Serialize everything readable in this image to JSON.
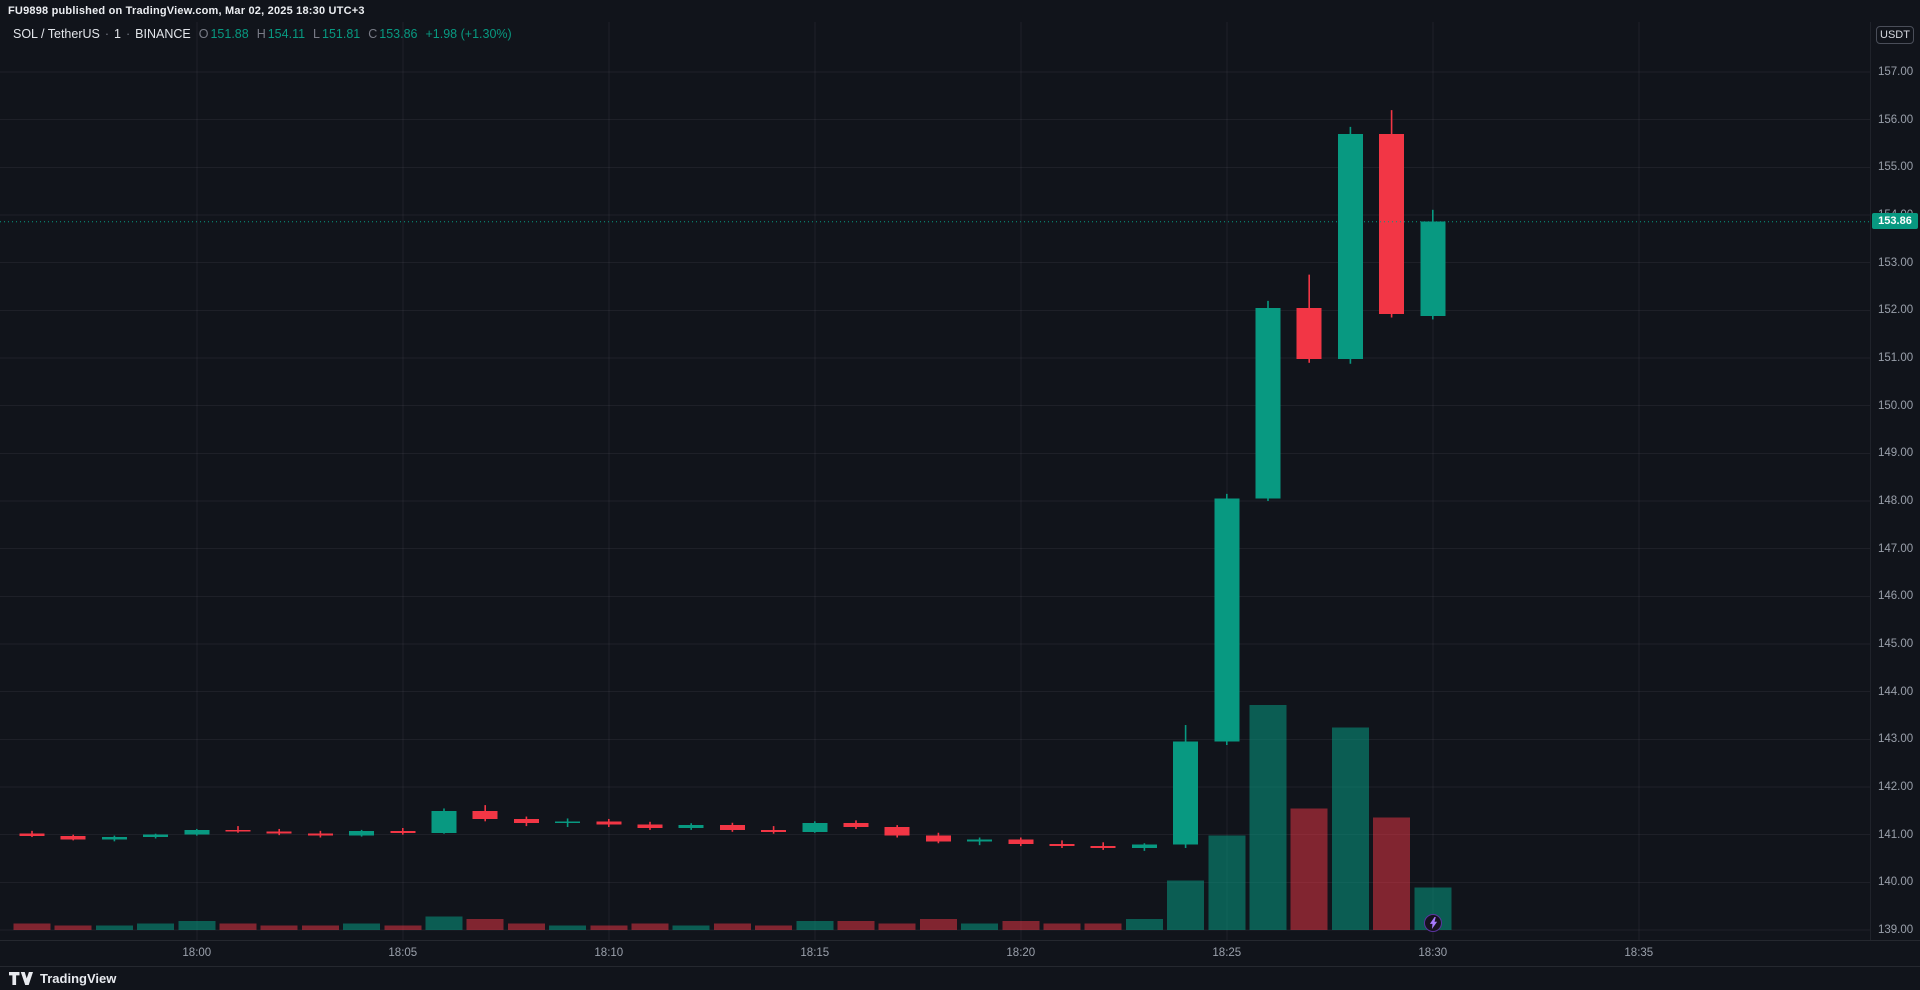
{
  "publish_bar": {
    "text": "FU9898 published on TradingView.com, Mar 02, 2025 18:30 UTC+3"
  },
  "legend": {
    "symbol": "SOL / TetherUS",
    "separator": "·",
    "interval": "1",
    "exchange": "BINANCE",
    "ohlc": {
      "o_label": "O",
      "o": "151.88",
      "h_label": "H",
      "h": "154.11",
      "l_label": "L",
      "l": "151.81",
      "c_label": "C",
      "c": "153.86",
      "change": "+1.98 (+1.30%)"
    }
  },
  "price_axis": {
    "currency": "USDT",
    "last_price": "153.86"
  },
  "footer": {
    "brand": "TradingView"
  },
  "colors": {
    "up": "#089981",
    "down": "#f23645",
    "vol_up": "rgba(8,153,129,0.55)",
    "vol_down": "rgba(242,54,69,0.5)",
    "last_price_bg": "#089981",
    "background": "#11141b"
  },
  "chart_data": {
    "type": "candlestick",
    "pair": "SOL/USDT",
    "exchange": "BINANCE",
    "interval": "1m",
    "ylim": [
      138.79,
      158.05
    ],
    "last_price": 153.86,
    "price_ticks": [
      139,
      140,
      141,
      142,
      143,
      144,
      145,
      146,
      147,
      148,
      149,
      150,
      151,
      152,
      153,
      154,
      155,
      156,
      157
    ],
    "time_ticks": [
      "18:00",
      "18:05",
      "18:10",
      "18:15",
      "18:20",
      "18:25",
      "18:30",
      "18:35"
    ],
    "volume_scale": "relative 0-1 of max bar",
    "candles": [
      {
        "t": "17:56",
        "o": 141.02,
        "h": 141.08,
        "l": 140.95,
        "c": 140.97,
        "v": 0.03
      },
      {
        "t": "17:57",
        "o": 140.97,
        "h": 141.0,
        "l": 140.88,
        "c": 140.9,
        "v": 0.02
      },
      {
        "t": "17:58",
        "o": 140.9,
        "h": 140.98,
        "l": 140.86,
        "c": 140.95,
        "v": 0.02
      },
      {
        "t": "17:59",
        "o": 140.95,
        "h": 141.02,
        "l": 140.92,
        "c": 141.0,
        "v": 0.03
      },
      {
        "t": "18:00",
        "o": 141.0,
        "h": 141.12,
        "l": 140.98,
        "c": 141.1,
        "v": 0.04
      },
      {
        "t": "18:01",
        "o": 141.1,
        "h": 141.18,
        "l": 141.04,
        "c": 141.07,
        "v": 0.03
      },
      {
        "t": "18:02",
        "o": 141.07,
        "h": 141.12,
        "l": 140.99,
        "c": 141.02,
        "v": 0.02
      },
      {
        "t": "18:03",
        "o": 141.02,
        "h": 141.08,
        "l": 140.94,
        "c": 140.98,
        "v": 0.02
      },
      {
        "t": "18:04",
        "o": 140.98,
        "h": 141.1,
        "l": 140.96,
        "c": 141.08,
        "v": 0.03
      },
      {
        "t": "18:05",
        "o": 141.08,
        "h": 141.14,
        "l": 141.0,
        "c": 141.04,
        "v": 0.02
      },
      {
        "t": "18:06",
        "o": 141.04,
        "h": 141.55,
        "l": 141.02,
        "c": 141.5,
        "v": 0.06
      },
      {
        "t": "18:07",
        "o": 141.5,
        "h": 141.62,
        "l": 141.28,
        "c": 141.33,
        "v": 0.05
      },
      {
        "t": "18:08",
        "o": 141.33,
        "h": 141.38,
        "l": 141.18,
        "c": 141.24,
        "v": 0.03
      },
      {
        "t": "18:09",
        "o": 141.24,
        "h": 141.34,
        "l": 141.16,
        "c": 141.28,
        "v": 0.02
      },
      {
        "t": "18:10",
        "o": 141.28,
        "h": 141.33,
        "l": 141.16,
        "c": 141.21,
        "v": 0.02
      },
      {
        "t": "18:11",
        "o": 141.21,
        "h": 141.27,
        "l": 141.1,
        "c": 141.14,
        "v": 0.03
      },
      {
        "t": "18:12",
        "o": 141.14,
        "h": 141.24,
        "l": 141.1,
        "c": 141.2,
        "v": 0.02
      },
      {
        "t": "18:13",
        "o": 141.2,
        "h": 141.25,
        "l": 141.06,
        "c": 141.1,
        "v": 0.03
      },
      {
        "t": "18:14",
        "o": 141.1,
        "h": 141.18,
        "l": 141.02,
        "c": 141.06,
        "v": 0.02
      },
      {
        "t": "18:15",
        "o": 141.06,
        "h": 141.28,
        "l": 141.04,
        "c": 141.24,
        "v": 0.04
      },
      {
        "t": "18:16",
        "o": 141.24,
        "h": 141.3,
        "l": 141.12,
        "c": 141.16,
        "v": 0.04
      },
      {
        "t": "18:17",
        "o": 141.16,
        "h": 141.2,
        "l": 140.94,
        "c": 140.98,
        "v": 0.03
      },
      {
        "t": "18:18",
        "o": 140.98,
        "h": 141.04,
        "l": 140.82,
        "c": 140.86,
        "v": 0.05
      },
      {
        "t": "18:19",
        "o": 140.86,
        "h": 140.94,
        "l": 140.78,
        "c": 140.9,
        "v": 0.03
      },
      {
        "t": "18:20",
        "o": 140.9,
        "h": 140.94,
        "l": 140.76,
        "c": 140.8,
        "v": 0.04
      },
      {
        "t": "18:21",
        "o": 140.8,
        "h": 140.88,
        "l": 140.72,
        "c": 140.76,
        "v": 0.03
      },
      {
        "t": "18:22",
        "o": 140.76,
        "h": 140.84,
        "l": 140.68,
        "c": 140.72,
        "v": 0.03
      },
      {
        "t": "18:23",
        "o": 140.72,
        "h": 140.82,
        "l": 140.66,
        "c": 140.79,
        "v": 0.05
      },
      {
        "t": "18:24",
        "o": 140.79,
        "h": 143.3,
        "l": 140.72,
        "c": 142.95,
        "v": 0.22
      },
      {
        "t": "18:25",
        "o": 142.95,
        "h": 148.15,
        "l": 142.88,
        "c": 148.05,
        "v": 0.42
      },
      {
        "t": "18:26",
        "o": 148.05,
        "h": 152.2,
        "l": 148.0,
        "c": 152.05,
        "v": 1.0
      },
      {
        "t": "18:27",
        "o": 152.05,
        "h": 152.75,
        "l": 150.9,
        "c": 150.98,
        "v": 0.54
      },
      {
        "t": "18:28",
        "o": 150.98,
        "h": 155.85,
        "l": 150.88,
        "c": 155.7,
        "v": 0.9
      },
      {
        "t": "18:29",
        "o": 155.7,
        "h": 156.2,
        "l": 151.85,
        "c": 151.92,
        "v": 0.5
      },
      {
        "t": "18:30",
        "o": 151.88,
        "h": 154.11,
        "l": 151.81,
        "c": 153.86,
        "v": 0.19
      }
    ]
  }
}
